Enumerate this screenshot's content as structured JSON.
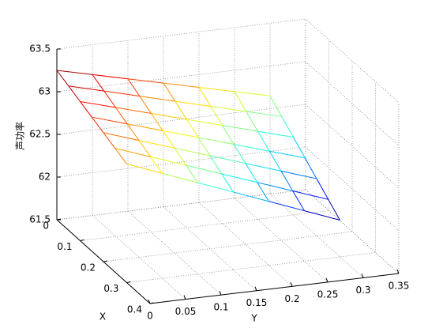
{
  "chart_data": {
    "type": "mesh3d",
    "xlabel": "X",
    "ylabel": "Y",
    "zlabel": "声功率",
    "x": [
      0,
      0.05,
      0.1,
      0.15,
      0.2,
      0.25,
      0.3
    ],
    "y": [
      0,
      0.05,
      0.1,
      0.15,
      0.2,
      0.25,
      0.3
    ],
    "z": [
      [
        63.25,
        63.15,
        63.05,
        62.95,
        62.85,
        62.75,
        62.65
      ],
      [
        63.19,
        63.08,
        62.97,
        62.86,
        62.75,
        62.64,
        62.53
      ],
      [
        63.13,
        63.01,
        62.89,
        62.77,
        62.65,
        62.53,
        62.41
      ],
      [
        63.07,
        62.94,
        62.81,
        62.68,
        62.55,
        62.42,
        62.29
      ],
      [
        63.01,
        62.87,
        62.73,
        62.59,
        62.45,
        62.31,
        62.17
      ],
      [
        62.95,
        62.8,
        62.65,
        62.5,
        62.35,
        62.2,
        62.05
      ],
      [
        62.89,
        62.73,
        62.57,
        62.41,
        62.25,
        62.09,
        61.93
      ]
    ],
    "colormap": "jet",
    "xlim": [
      0,
      0.4
    ],
    "xticks": [
      0,
      0.1,
      0.2,
      0.3,
      0.4
    ],
    "ylim": [
      0,
      0.35
    ],
    "yticks": [
      0,
      0.05,
      0.1,
      0.15,
      0.2,
      0.25,
      0.3,
      0.35
    ],
    "zlim": [
      61.5,
      63.5
    ],
    "zticks": [
      61.5,
      62,
      62.5,
      63,
      63.5
    ],
    "grid": true
  }
}
